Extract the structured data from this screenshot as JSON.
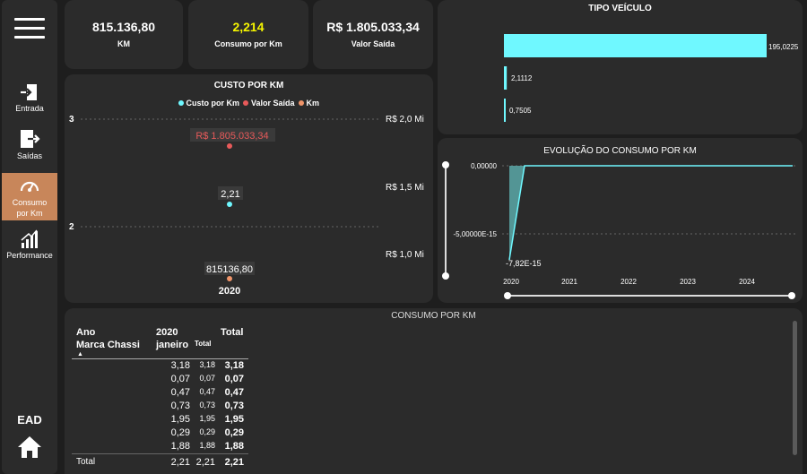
{
  "sidebar": {
    "items": [
      {
        "label": "Entrada",
        "icon": "entrada-icon"
      },
      {
        "label": "Saídas",
        "icon": "saidas-icon"
      },
      {
        "label": "Consumo por Km",
        "icon": "gauge-icon",
        "active": true
      },
      {
        "label": "Performance",
        "icon": "bar-chart-icon"
      }
    ],
    "ead_label": "EAD"
  },
  "kpis": [
    {
      "value": "815.136,80",
      "label": "KM",
      "color": "#ffffff"
    },
    {
      "value": "2,214",
      "label": "Consumo por Km",
      "color": "#f5f500"
    },
    {
      "value": "R$ 1.805.033,34",
      "label": "Valor Saída",
      "color": "#ffffff"
    }
  ],
  "tipo_veiculo": {
    "title": "TIPO VEÍCULO",
    "chart_data": {
      "type": "bar",
      "orientation": "horizontal",
      "values": [
        195.0225,
        2.1112,
        0.7505
      ],
      "labels": [
        "195,0225",
        "2,1112",
        "0,7505"
      ],
      "color": "#6ff8ff"
    }
  },
  "custo_por_km": {
    "title": "CUSTO POR KM",
    "legend": [
      {
        "name": "Custo por Km",
        "color": "#6ff8ff"
      },
      {
        "name": "Valor Saída",
        "color": "#e85a5a"
      },
      {
        "name": "Km",
        "color": "#f0956a"
      }
    ],
    "chart_data": {
      "type": "scatter",
      "x": [
        "2020"
      ],
      "series": [
        {
          "name": "Custo por Km",
          "values": [
            2.21
          ],
          "label": "2,21"
        },
        {
          "name": "Valor Saída",
          "values": [
            1805033.34
          ],
          "label": "R$ 1.805.033,34"
        },
        {
          "name": "Km",
          "values": [
            815136.8
          ],
          "label": "815136,80"
        }
      ],
      "left_ticks": [
        "3",
        "2"
      ],
      "right_ticks": [
        "R$ 2,0 Mi",
        "R$ 1,5 Mi",
        "R$ 1,0 Mi"
      ],
      "x_label": "2020"
    }
  },
  "evolucao": {
    "title": "EVOLUÇÃO DO CONSUMO POR KM",
    "chart_data": {
      "type": "area",
      "x_ticks": [
        "2020",
        "2021",
        "2022",
        "2023",
        "2024"
      ],
      "y_ticks": [
        "0,00000",
        "-5,00000E-15"
      ],
      "min_label": "-7,82E-15",
      "color": "#6ff8ff"
    }
  },
  "consumo_table": {
    "title": "CONSUMO POR KM",
    "headers": {
      "ano": "Ano",
      "marca": "Marca Chassi",
      "year": "2020",
      "month": "janeiro",
      "total_sub": "Total",
      "total": "Total"
    },
    "rows": [
      [
        "3,18",
        "3,18",
        "3,18"
      ],
      [
        "0,07",
        "0,07",
        "0,07"
      ],
      [
        "0,47",
        "0,47",
        "0,47"
      ],
      [
        "0,73",
        "0,73",
        "0,73"
      ],
      [
        "1,95",
        "1,95",
        "1,95"
      ],
      [
        "0,29",
        "0,29",
        "0,29"
      ],
      [
        "1,88",
        "1,88",
        "1,88"
      ]
    ],
    "total_row": {
      "label": "Total",
      "values": [
        "2,21",
        "2,21",
        "2,21"
      ]
    }
  }
}
